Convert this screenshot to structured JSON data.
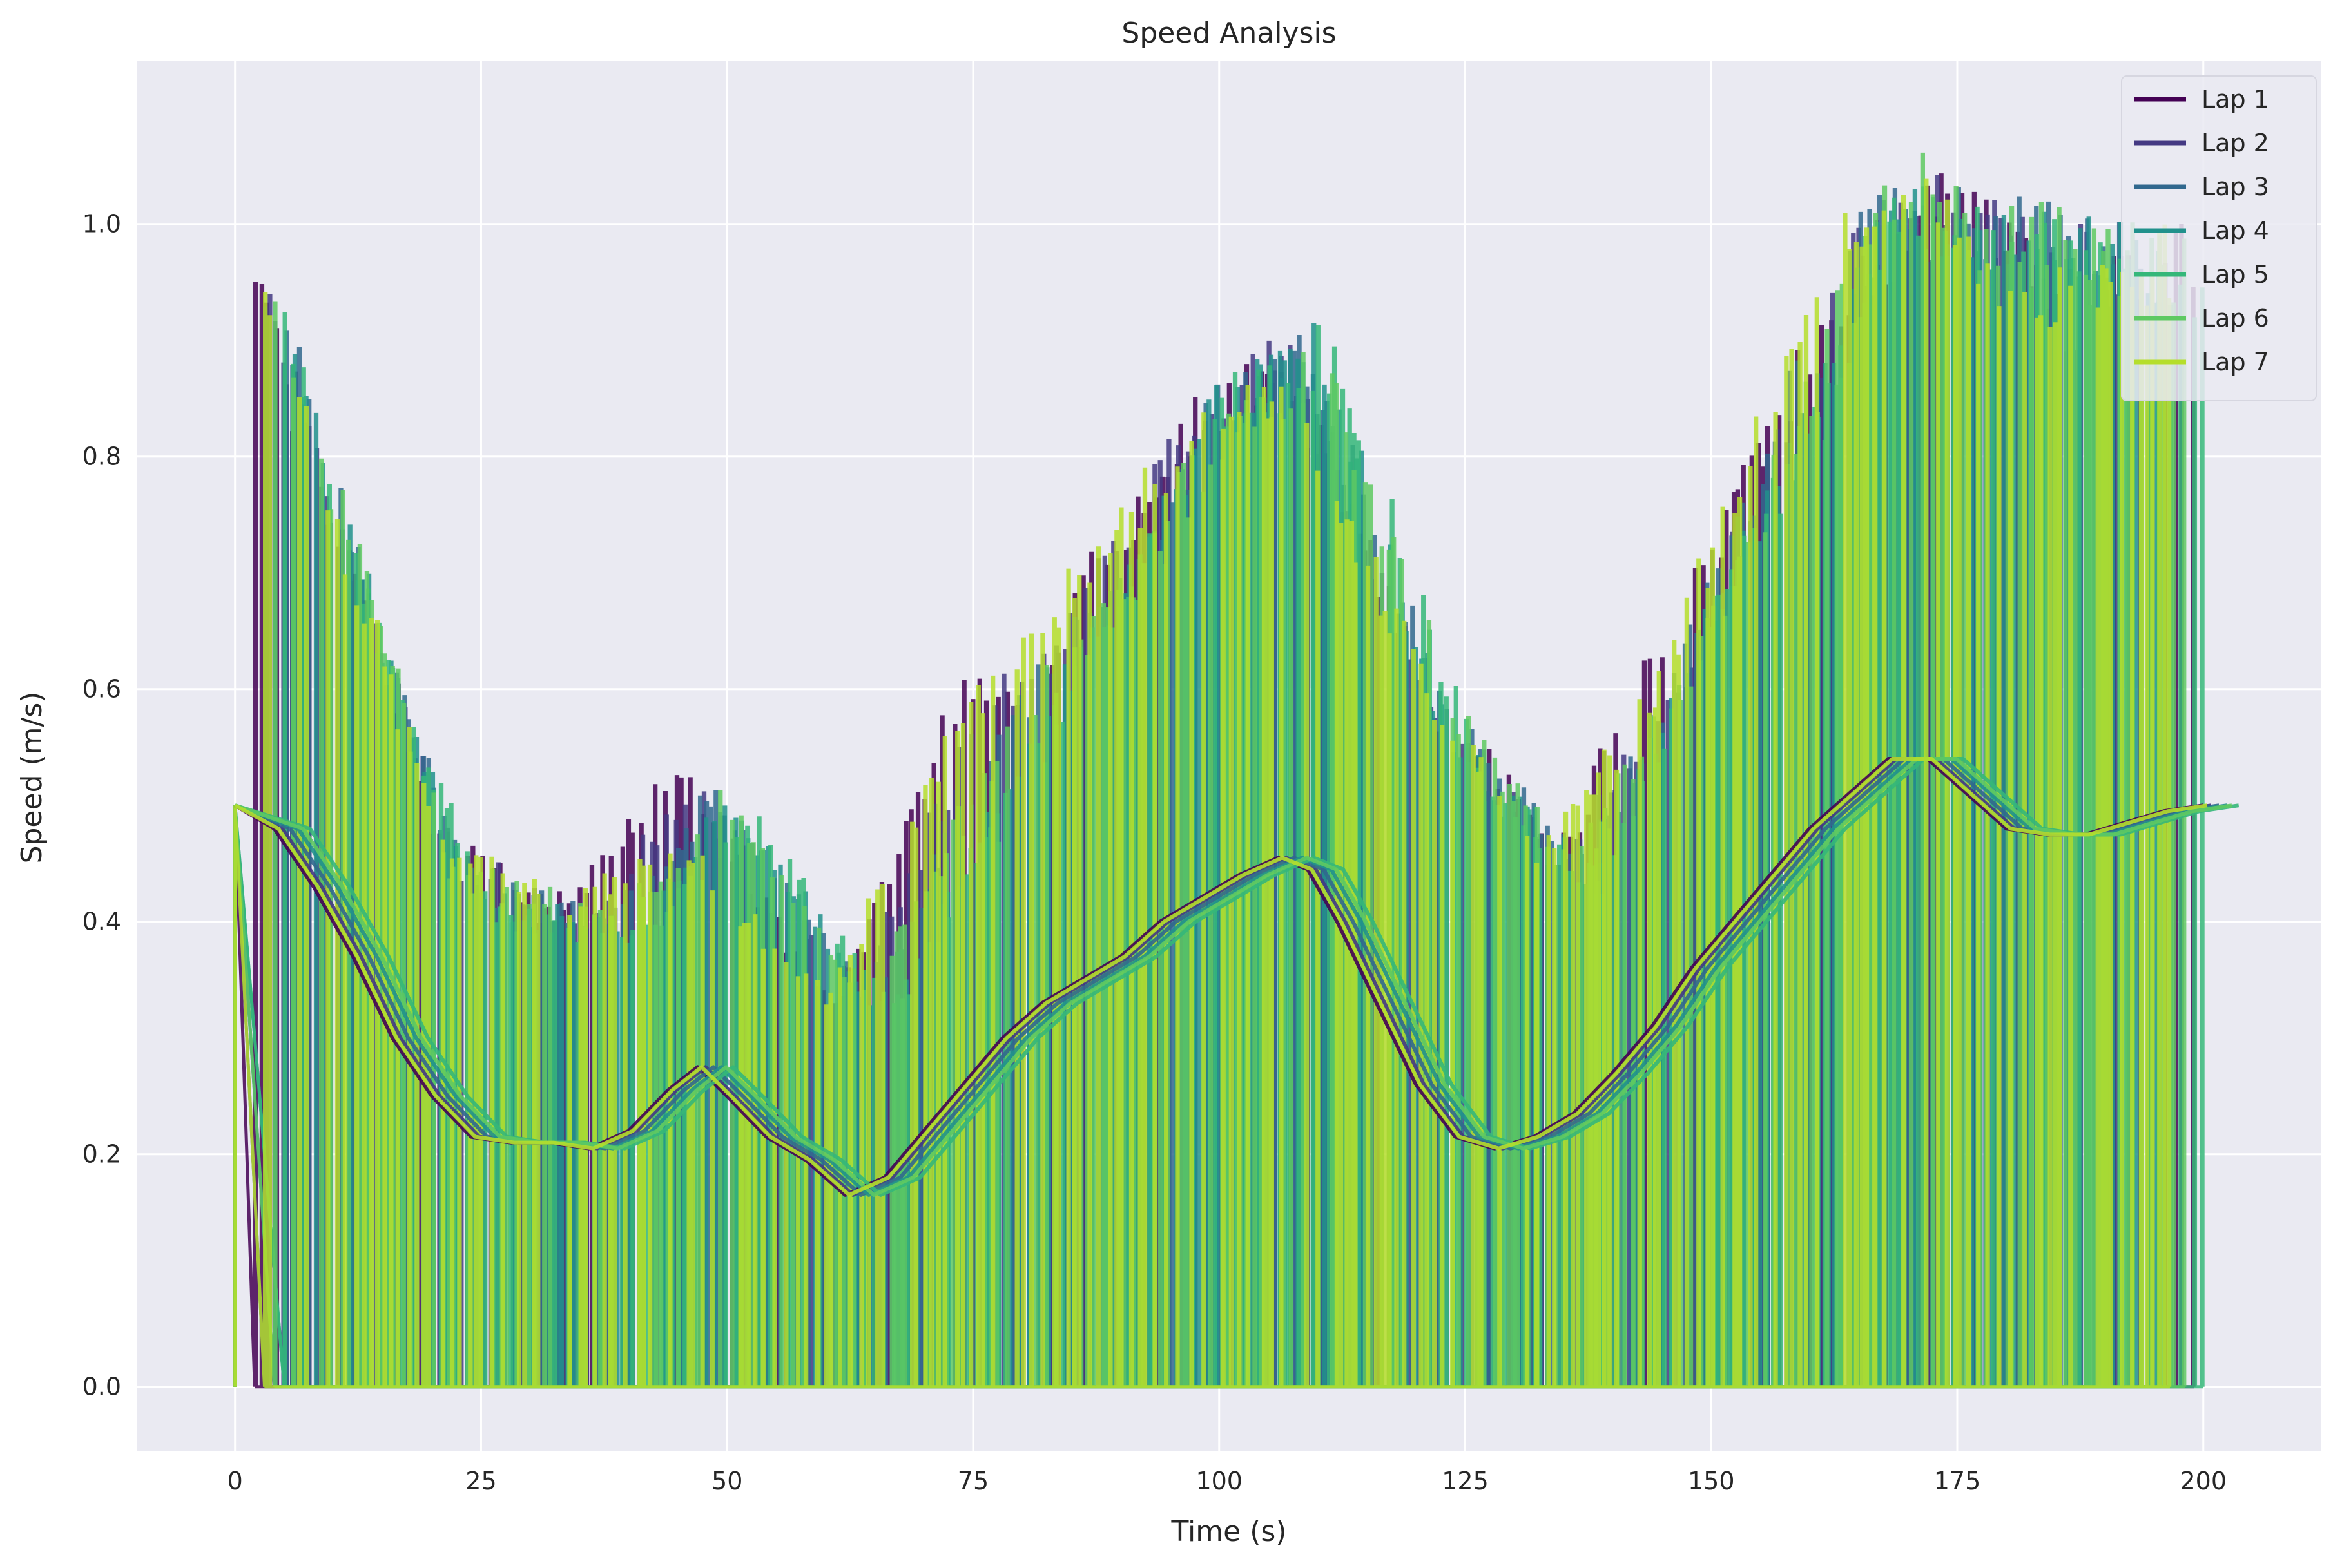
{
  "chart_data": {
    "type": "line",
    "title": "Speed Analysis",
    "xlabel": "Time (s)",
    "ylabel": "Speed (m/s)",
    "xlim": [
      -10,
      212
    ],
    "ylim": [
      -0.055,
      1.14
    ],
    "x_ticks": [
      0,
      25,
      50,
      75,
      100,
      125,
      150,
      175,
      200
    ],
    "y_ticks": [
      0.0,
      0.2,
      0.4,
      0.6,
      0.8,
      1.0
    ],
    "x_tick_labels": [
      "0",
      "25",
      "50",
      "75",
      "100",
      "125",
      "150",
      "175",
      "200"
    ],
    "y_tick_labels": [
      "0.0",
      "0.2",
      "0.4",
      "0.6",
      "0.8",
      "1.0"
    ],
    "grid": true,
    "legend_position": "top-right",
    "series": [
      {
        "name": "Lap 1",
        "color": "#440154",
        "lag": 0.0,
        "spike_seed": 1,
        "raw_peaks": [
          [
            2,
            0.98
          ],
          [
            10,
            0.77
          ],
          [
            20,
            0.49
          ],
          [
            32,
            0.42
          ],
          [
            45,
            0.54
          ],
          [
            61,
            0.33
          ],
          [
            74,
            0.63
          ],
          [
            79,
            0.6
          ],
          [
            96,
            0.85
          ],
          [
            106,
            0.91
          ],
          [
            122,
            0.6
          ],
          [
            135,
            0.48
          ],
          [
            144,
            0.65
          ],
          [
            152,
            0.78
          ],
          [
            159,
            0.9
          ],
          [
            172,
            1.07
          ],
          [
            176,
            1.05
          ],
          [
            186,
            0.95
          ],
          [
            197,
            1.0
          ]
        ]
      },
      {
        "name": "Lap 2",
        "color": "#443983",
        "lag": 0.8,
        "spike_seed": 2,
        "raw_peaks": [
          [
            3,
            0.97
          ],
          [
            12,
            0.73
          ],
          [
            22,
            0.47
          ],
          [
            36,
            0.41
          ],
          [
            46,
            0.53
          ],
          [
            63,
            0.35
          ],
          [
            76,
            0.6
          ],
          [
            86,
            0.68
          ],
          [
            98,
            0.87
          ],
          [
            107,
            0.93
          ],
          [
            120,
            0.62
          ],
          [
            134,
            0.47
          ],
          [
            146,
            0.6
          ],
          [
            154,
            0.79
          ],
          [
            164,
            0.99
          ],
          [
            174,
            1.05
          ],
          [
            190,
            0.99
          ]
        ]
      },
      {
        "name": "Lap 3",
        "color": "#31688e",
        "lag": 1.6,
        "spike_seed": 3,
        "raw_peaks": [
          [
            4,
            0.96
          ],
          [
            14,
            0.7
          ],
          [
            23,
            0.45
          ],
          [
            38,
            0.41
          ],
          [
            48,
            0.52
          ],
          [
            65,
            0.34
          ],
          [
            77,
            0.58
          ],
          [
            90,
            0.71
          ],
          [
            99,
            0.86
          ],
          [
            108,
            0.93
          ],
          [
            123,
            0.6
          ],
          [
            137,
            0.46
          ],
          [
            149,
            0.68
          ],
          [
            155,
            0.82
          ],
          [
            166,
            1.03
          ],
          [
            175,
            1.04
          ],
          [
            192,
            1.0
          ]
        ]
      },
      {
        "name": "Lap 4",
        "color": "#21918c",
        "lag": 2.4,
        "spike_seed": 4,
        "raw_peaks": [
          [
            5,
            0.94
          ],
          [
            15,
            0.66
          ],
          [
            24,
            0.43
          ],
          [
            40,
            0.4
          ],
          [
            50,
            0.52
          ],
          [
            66,
            0.33
          ],
          [
            79,
            0.55
          ],
          [
            92,
            0.74
          ],
          [
            100,
            0.87
          ],
          [
            110,
            0.92
          ],
          [
            124,
            0.56
          ],
          [
            138,
            0.45
          ],
          [
            150,
            0.7
          ],
          [
            160,
            0.85
          ],
          [
            168,
            1.04
          ],
          [
            177,
            1.02
          ],
          [
            194,
            1.0
          ]
        ]
      },
      {
        "name": "Lap 5",
        "color": "#35b779",
        "lag": 3.6,
        "spike_seed": 5,
        "raw_peaks": [
          [
            5,
            0.93
          ],
          [
            16,
            0.62
          ],
          [
            26,
            0.42
          ],
          [
            42,
            0.4
          ],
          [
            52,
            0.51
          ],
          [
            67,
            0.33
          ],
          [
            80,
            0.54
          ],
          [
            94,
            0.75
          ],
          [
            102,
            0.88
          ],
          [
            112,
            0.92
          ],
          [
            126,
            0.55
          ],
          [
            139,
            0.44
          ],
          [
            151,
            0.72
          ],
          [
            162,
            0.87
          ],
          [
            170,
            1.06
          ],
          [
            178,
            1.02
          ],
          [
            199,
            0.97
          ]
        ]
      },
      {
        "name": "Lap 6",
        "color": "#5ec962",
        "lag": 2.9,
        "spike_seed": 6,
        "raw_peaks": [
          [
            4,
            0.95
          ],
          [
            13,
            0.72
          ],
          [
            22,
            0.46
          ],
          [
            39,
            0.41
          ],
          [
            49,
            0.52
          ],
          [
            64,
            0.35
          ],
          [
            78,
            0.57
          ],
          [
            91,
            0.72
          ],
          [
            101,
            0.86
          ],
          [
            111,
            0.9
          ],
          [
            125,
            0.58
          ],
          [
            136,
            0.46
          ],
          [
            148,
            0.64
          ],
          [
            158,
            0.84
          ],
          [
            169,
            1.08
          ],
          [
            177,
            1.03
          ],
          [
            196,
            1.0
          ]
        ]
      },
      {
        "name": "Lap 7",
        "color": "#b5de2b",
        "lag": 0.4,
        "spike_seed": 7,
        "raw_peaks": [
          [
            3,
            0.97
          ],
          [
            11,
            0.75
          ],
          [
            21,
            0.48
          ],
          [
            34,
            0.42
          ],
          [
            44,
            0.49
          ],
          [
            60,
            0.34
          ],
          [
            73,
            0.58
          ],
          [
            88,
            0.74
          ],
          [
            97,
            0.85
          ],
          [
            104,
            0.9
          ],
          [
            114,
            0.75
          ],
          [
            121,
            0.62
          ],
          [
            133,
            0.47
          ],
          [
            143,
            0.6
          ],
          [
            157,
            0.89
          ],
          [
            168,
            1.09
          ],
          [
            180,
            0.96
          ],
          [
            195,
            1.0
          ]
        ]
      }
    ],
    "smoothed_profile": {
      "x": [
        0,
        4,
        8,
        12,
        16,
        20,
        24,
        28,
        32,
        36,
        40,
        44,
        47,
        50,
        54,
        58,
        62,
        66,
        70,
        74,
        78,
        82,
        86,
        90,
        94,
        98,
        102,
        106,
        109,
        112,
        116,
        120,
        124,
        128,
        132,
        136,
        140,
        144,
        148,
        152,
        156,
        160,
        164,
        168,
        172,
        176,
        180,
        184,
        188,
        192,
        196,
        200
      ],
      "y": [
        0.5,
        0.48,
        0.43,
        0.37,
        0.3,
        0.25,
        0.215,
        0.21,
        0.21,
        0.205,
        0.22,
        0.255,
        0.275,
        0.25,
        0.215,
        0.195,
        0.165,
        0.18,
        0.22,
        0.26,
        0.3,
        0.33,
        0.35,
        0.37,
        0.4,
        0.42,
        0.44,
        0.455,
        0.445,
        0.4,
        0.33,
        0.26,
        0.215,
        0.205,
        0.215,
        0.235,
        0.27,
        0.31,
        0.36,
        0.4,
        0.44,
        0.48,
        0.51,
        0.54,
        0.54,
        0.51,
        0.48,
        0.475,
        0.475,
        0.485,
        0.495,
        0.5
      ]
    }
  }
}
